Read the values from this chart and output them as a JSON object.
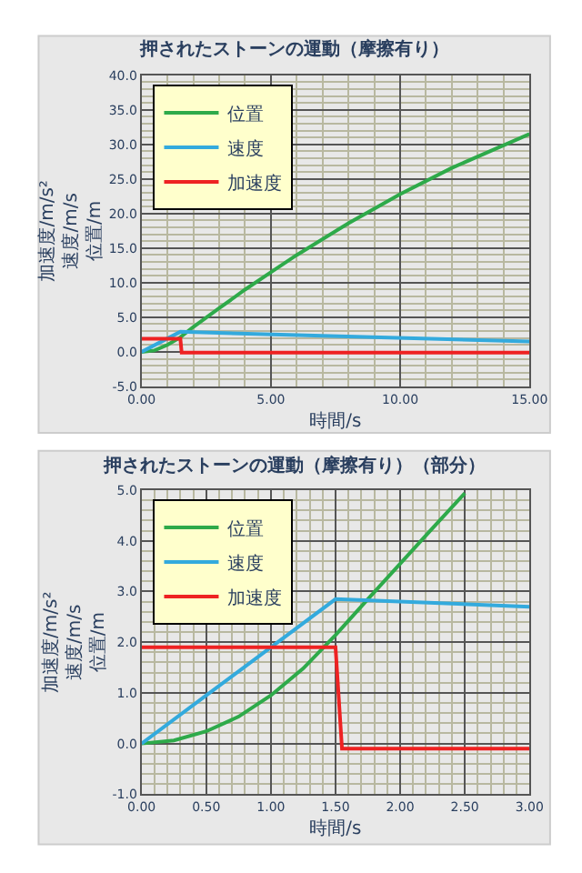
{
  "chart_data": [
    {
      "type": "line",
      "title": "押されたストーンの運動（摩擦有り）",
      "xlabel": "時間/s",
      "ylabel": "加速度/m/s² 速度/m/s 位置/m",
      "series": [
        {
          "name": "位置",
          "color": "#2eaa4a",
          "x": [
            0,
            0.5,
            1,
            1.5,
            2,
            3,
            4,
            5,
            6,
            8,
            10,
            12,
            15
          ],
          "values": [
            0,
            0.2,
            1.0,
            2.1,
            3.6,
            6.3,
            9.0,
            11.5,
            14.0,
            18.6,
            22.8,
            26.6,
            31.5
          ]
        },
        {
          "name": "速度",
          "color": "#33aadd",
          "x": [
            0,
            1.5,
            15
          ],
          "values": [
            0,
            2.9,
            1.5
          ]
        },
        {
          "name": "加速度",
          "color": "#ee2222",
          "x": [
            0,
            1.5,
            1.55,
            15
          ],
          "values": [
            1.9,
            1.9,
            -0.1,
            -0.1
          ]
        }
      ],
      "xlim": [
        0,
        15
      ],
      "ylim": [
        -5,
        40
      ],
      "xticks": [
        {
          "value": 0,
          "label": "0.00"
        },
        {
          "value": 5,
          "label": "5.00"
        },
        {
          "value": 10,
          "label": "10.00"
        },
        {
          "value": 15,
          "label": "15.00"
        }
      ],
      "yticks": [
        {
          "value": -5,
          "label": "-5.0"
        },
        {
          "value": 0,
          "label": "0.0"
        },
        {
          "value": 5,
          "label": "5.0"
        },
        {
          "value": 10,
          "label": "10.0"
        },
        {
          "value": 15,
          "label": "15.0"
        },
        {
          "value": 20,
          "label": "20.0"
        },
        {
          "value": 25,
          "label": "25.0"
        },
        {
          "value": 30,
          "label": "30.0"
        },
        {
          "value": 35,
          "label": "35.0"
        },
        {
          "value": 40,
          "label": "40.0"
        }
      ],
      "grid": true,
      "legend": "top left"
    },
    {
      "type": "line",
      "title": "押されたストーンの運動（摩擦有り）（部分）",
      "xlabel": "時間/s",
      "ylabel": "加速度/m/s² 速度/m/s 位置/m",
      "series": [
        {
          "name": "位置",
          "color": "#2eaa4a",
          "x": [
            0,
            0.25,
            0.5,
            0.75,
            1,
            1.25,
            1.5,
            1.75,
            2,
            2.25,
            2.5
          ],
          "values": [
            0,
            0.06,
            0.24,
            0.53,
            0.95,
            1.48,
            2.14,
            2.85,
            3.55,
            4.25,
            4.94
          ]
        },
        {
          "name": "速度",
          "color": "#33aadd",
          "x": [
            0,
            1.5,
            3
          ],
          "values": [
            0,
            2.85,
            2.7
          ]
        },
        {
          "name": "加速度",
          "color": "#ee2222",
          "x": [
            0,
            1.5,
            1.55,
            3
          ],
          "values": [
            1.9,
            1.9,
            -0.1,
            -0.1
          ]
        }
      ],
      "xlim": [
        0,
        3
      ],
      "ylim": [
        -1,
        5
      ],
      "xticks": [
        {
          "value": 0,
          "label": "0.00"
        },
        {
          "value": 0.5,
          "label": "0.50"
        },
        {
          "value": 1,
          "label": "1.00"
        },
        {
          "value": 1.5,
          "label": "1.50"
        },
        {
          "value": 2,
          "label": "2.00"
        },
        {
          "value": 2.5,
          "label": "2.50"
        },
        {
          "value": 3,
          "label": "3.00"
        }
      ],
      "yticks": [
        {
          "value": -1,
          "label": "-1.0"
        },
        {
          "value": 0,
          "label": "0.0"
        },
        {
          "value": 1,
          "label": "1.0"
        },
        {
          "value": 2,
          "label": "2.0"
        },
        {
          "value": 3,
          "label": "3.0"
        },
        {
          "value": 4,
          "label": "4.0"
        },
        {
          "value": 5,
          "label": "5.0"
        }
      ],
      "grid": true,
      "legend": "top left"
    }
  ]
}
